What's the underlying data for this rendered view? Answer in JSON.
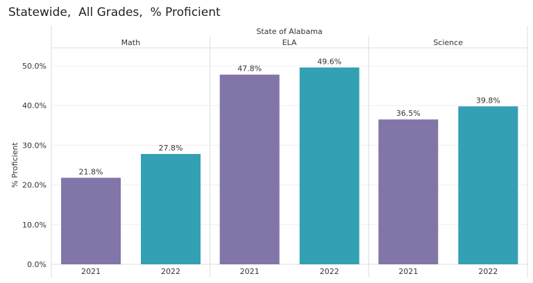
{
  "chart_data": {
    "type": "bar",
    "title": "Statewide,  All Grades,  % Proficient",
    "header": "State of Alabama",
    "ylabel": "% Proficient",
    "ylim": [
      0,
      55
    ],
    "yticks": [
      "0.0%",
      "10.0%",
      "20.0%",
      "30.0%",
      "40.0%",
      "50.0%"
    ],
    "ytick_values": [
      0,
      10,
      20,
      30,
      40,
      50
    ],
    "grid": true,
    "colors": {
      "2021": "#8275a8",
      "2022": "#33a0b4"
    },
    "panels": [
      {
        "name": "Math",
        "categories": [
          "2021",
          "2022"
        ],
        "values": [
          21.8,
          27.8
        ],
        "labels": [
          "21.8%",
          "27.8%"
        ]
      },
      {
        "name": "ELA",
        "categories": [
          "2021",
          "2022"
        ],
        "values": [
          47.8,
          49.6
        ],
        "labels": [
          "47.8%",
          "49.6%"
        ]
      },
      {
        "name": "Science",
        "categories": [
          "2021",
          "2022"
        ],
        "values": [
          36.5,
          39.8
        ],
        "labels": [
          "36.5%",
          "39.8%"
        ]
      }
    ]
  }
}
